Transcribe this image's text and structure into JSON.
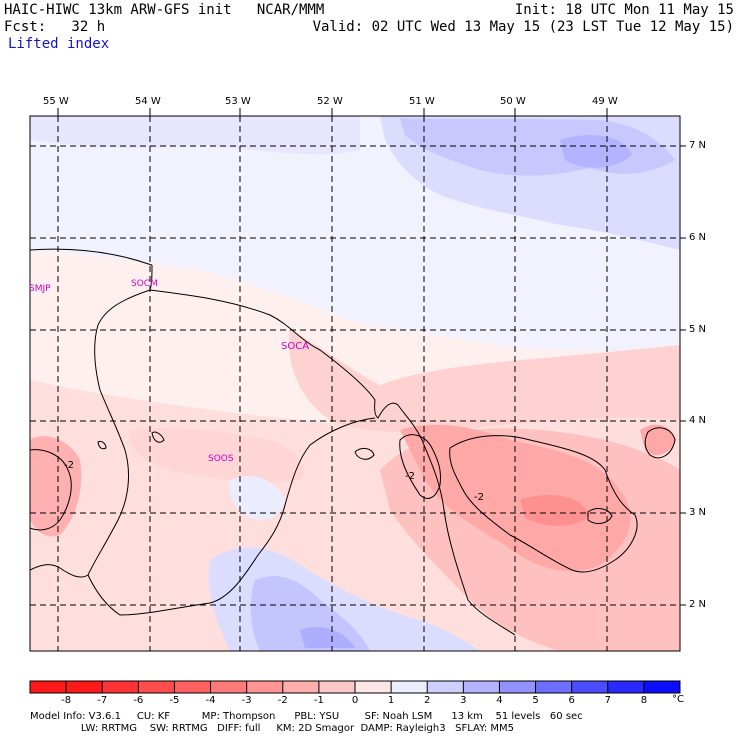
{
  "header": {
    "model_line": "HAIC-HIWC 13km ARW-GFS init   NCAR/MMM",
    "fcst_line": "Fcst:   32 h",
    "field": "Lifted index",
    "init_line": "Init: 18 UTC Mon 11 May 15",
    "valid_line": "Valid: 02 UTC Wed 13 May 15 (23 LST Tue 12 May 15)"
  },
  "map": {
    "lon_labels": [
      "55 W",
      "54 W",
      "53 W",
      "52 W",
      "51 W",
      "50 W",
      "49 W"
    ],
    "lat_labels": [
      "7 N",
      "6 N",
      "5 N",
      "4 N",
      "3 N",
      "2 N"
    ],
    "stations": [
      "SMJP",
      "SOCM",
      "SOCA",
      "SOOS"
    ],
    "contour_labels": [
      "-2",
      "-2",
      "-2"
    ]
  },
  "colorbar": {
    "unit": "°C",
    "ticks": [
      "-8",
      "-7",
      "-6",
      "-5",
      "-4",
      "-3",
      "-2",
      "-1",
      "0",
      "1",
      "2",
      "3",
      "4",
      "5",
      "6",
      "7",
      "8"
    ],
    "colors": [
      "#ff1a1a",
      "#ff3333",
      "#ff4d4d",
      "#ff6060",
      "#ff7a7a",
      "#ff9494",
      "#ffaeae",
      "#ffc8c8",
      "#ffe6e6",
      "#ececff",
      "#cfcfff",
      "#b3b3ff",
      "#9191ff",
      "#6e6eff",
      "#4b4bff",
      "#2a2aff",
      "#0d0dff"
    ]
  },
  "footer": {
    "line1": "Model Info: V3.6.1     CU: KF          MP: Thompson      PBL: YSU        SF: Noah LSM      13 km    51 levels   60 sec",
    "line2": "                LW: RRTMG    SW: RRTMG   DIFF: full     KM: 2D Smagor  DAMP: Rayleigh3   SFLAY: MM5"
  }
}
